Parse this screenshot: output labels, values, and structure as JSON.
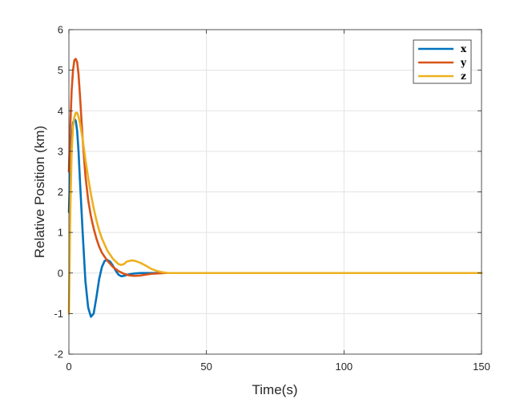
{
  "chart_data": {
    "type": "line",
    "xlabel": "Time(s)",
    "ylabel": "Relative Position (km)",
    "xlim": [
      0,
      150
    ],
    "ylim": [
      -2,
      6
    ],
    "xticks": [
      0,
      50,
      100,
      150
    ],
    "yticks": [
      -2,
      -1,
      0,
      1,
      2,
      3,
      4,
      5,
      6
    ],
    "grid": true,
    "legend_position": "top-right",
    "series": [
      {
        "name": "x",
        "color": "#0072BD",
        "x": [
          0,
          0.5,
          1,
          1.5,
          2,
          2.5,
          3,
          3.5,
          4,
          5,
          6,
          7,
          8,
          9,
          10,
          11,
          12,
          13,
          14,
          15,
          16,
          17,
          18,
          19,
          20,
          22,
          24,
          26,
          28,
          30,
          35,
          40,
          50,
          150
        ],
        "y": [
          1.5,
          2.6,
          3.3,
          3.7,
          3.8,
          3.75,
          3.5,
          3.0,
          2.3,
          1.0,
          -0.2,
          -0.85,
          -1.08,
          -1.0,
          -0.6,
          -0.15,
          0.15,
          0.3,
          0.32,
          0.28,
          0.18,
          0.06,
          -0.04,
          -0.08,
          -0.07,
          -0.03,
          -0.01,
          0.0,
          0.0,
          0.0,
          0.0,
          0.0,
          0.0,
          0.0
        ]
      },
      {
        "name": "y",
        "color": "#D95319",
        "x": [
          0,
          0.5,
          1,
          1.5,
          2,
          2.5,
          3,
          3.5,
          4,
          5,
          6,
          7,
          8,
          9,
          10,
          11,
          12,
          14,
          16,
          18,
          20,
          22,
          24,
          26,
          28,
          30,
          35,
          40,
          50,
          150
        ],
        "y": [
          2.5,
          3.6,
          4.5,
          5.0,
          5.25,
          5.28,
          5.2,
          4.9,
          4.4,
          3.3,
          2.4,
          1.8,
          1.4,
          1.1,
          0.85,
          0.65,
          0.5,
          0.3,
          0.15,
          0.05,
          -0.02,
          -0.06,
          -0.07,
          -0.06,
          -0.04,
          -0.02,
          0.0,
          0.0,
          0.0,
          0.0
        ]
      },
      {
        "name": "z",
        "color": "#EDB120",
        "x": [
          0,
          0.5,
          1,
          1.5,
          2,
          2.5,
          3,
          3.5,
          4,
          5,
          6,
          7,
          8,
          9,
          10,
          11,
          12,
          14,
          16,
          18,
          19,
          20,
          21,
          22,
          23,
          24,
          26,
          28,
          30,
          32,
          34,
          36,
          40,
          50,
          150
        ],
        "y": [
          -1.0,
          1.5,
          3.0,
          3.6,
          3.85,
          3.95,
          3.95,
          3.85,
          3.7,
          3.3,
          2.8,
          2.35,
          1.95,
          1.6,
          1.3,
          1.05,
          0.85,
          0.55,
          0.35,
          0.22,
          0.2,
          0.22,
          0.28,
          0.3,
          0.31,
          0.3,
          0.25,
          0.18,
          0.1,
          0.05,
          0.02,
          0.0,
          0.0,
          0.0,
          0.0
        ]
      }
    ]
  }
}
